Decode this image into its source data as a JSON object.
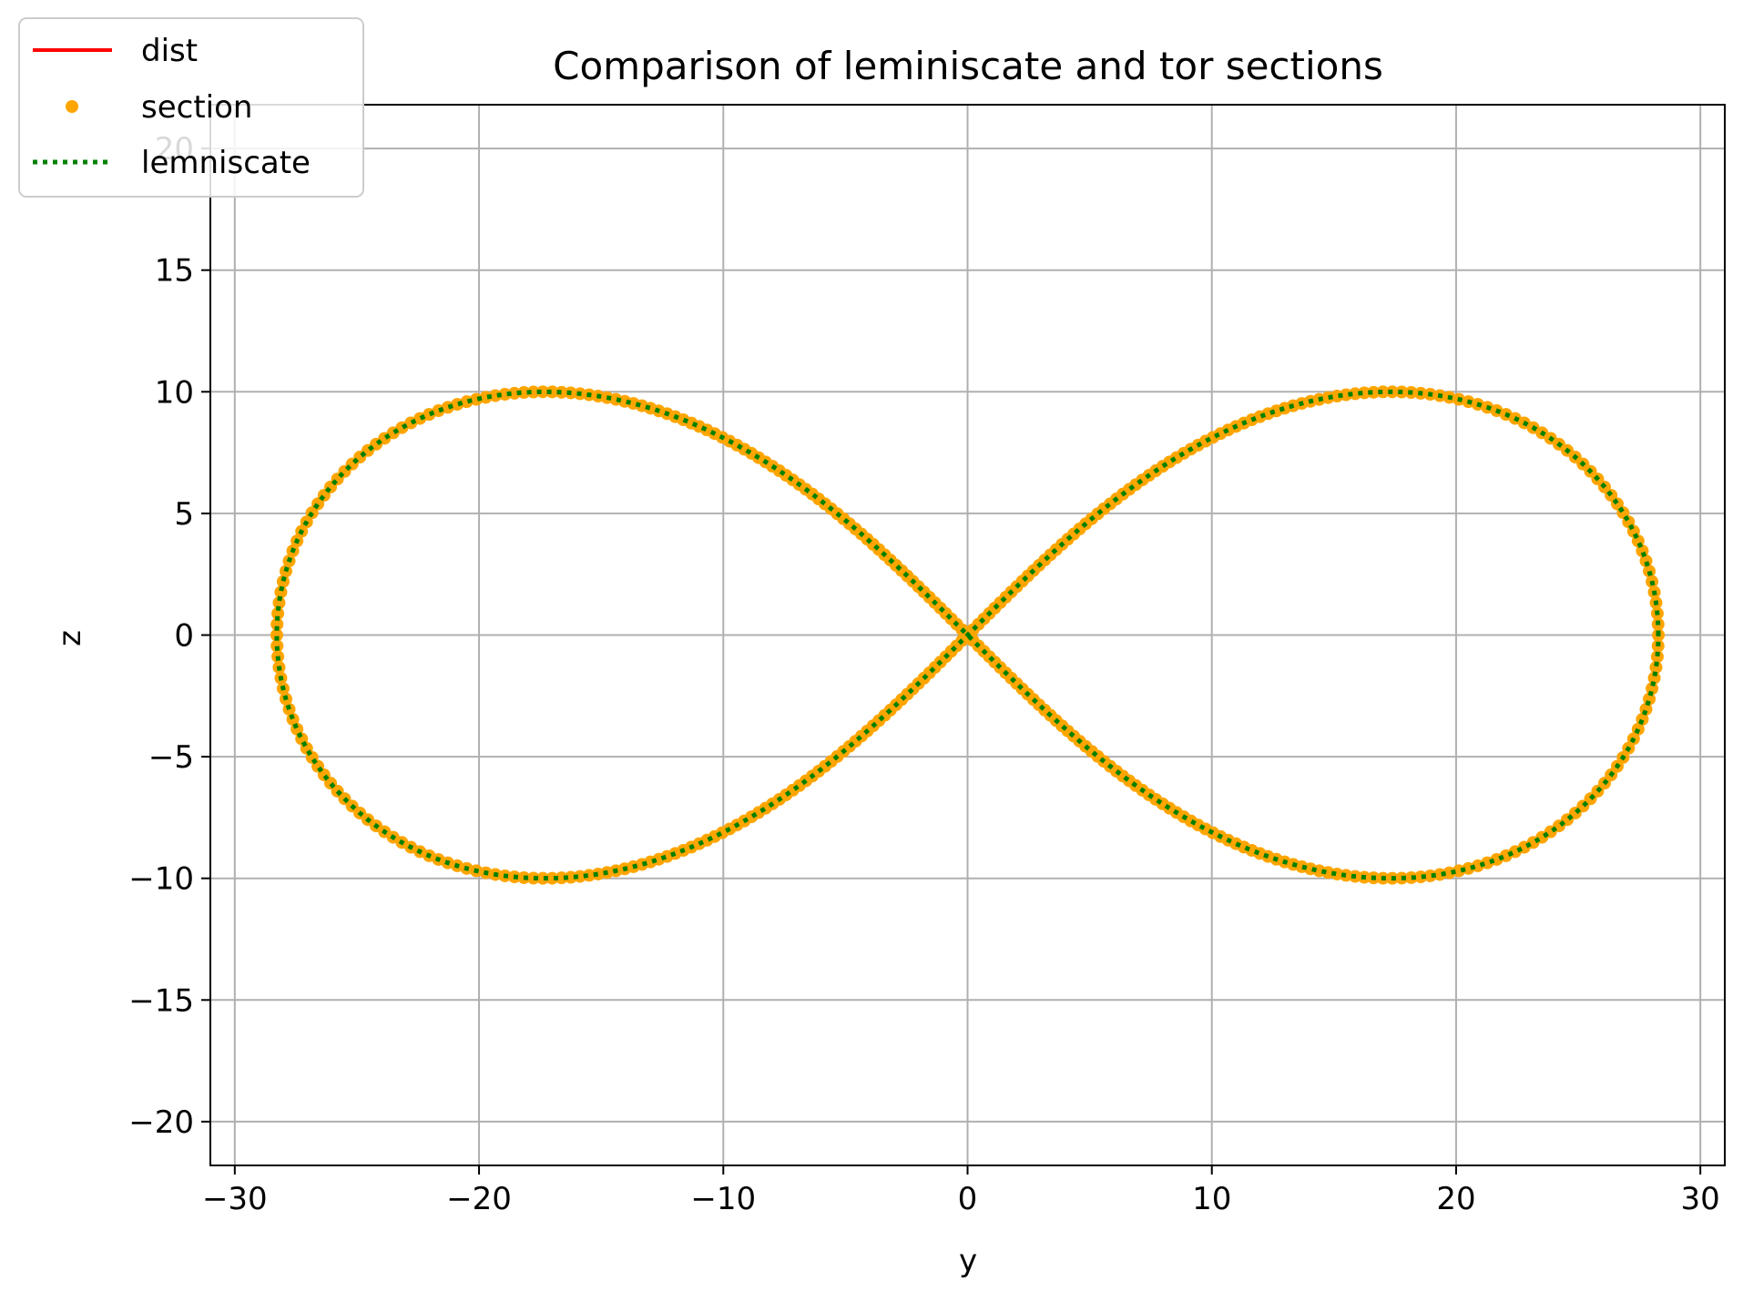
{
  "chart_data": {
    "type": "line",
    "title": "Comparison of leminiscate and tor sections",
    "xlabel": "y",
    "ylabel": "z",
    "xlim": [
      -31,
      31
    ],
    "ylim": [
      -21.8,
      21.8
    ],
    "xticks": [
      -30,
      -20,
      -10,
      0,
      10,
      20,
      30
    ],
    "yticks": [
      -20,
      -15,
      -10,
      -5,
      0,
      5,
      10,
      15,
      20
    ],
    "xtick_labels": [
      "−30",
      "−20",
      "−10",
      "0",
      "10",
      "20",
      "30"
    ],
    "ytick_labels": [
      "−20",
      "−15",
      "−10",
      "−5",
      "0",
      "5",
      "10",
      "15",
      "20"
    ],
    "grid": true,
    "legend_position": "top-left",
    "curve": {
      "kind": "lemniscate of Bernoulli",
      "a": 28.28,
      "parametric": "y = a*cos(t)/(1+sin(t)^2), z = a*sin(t)*cos(t)/(1+sin(t)^2)",
      "y_range": [
        -28.28,
        28.28
      ],
      "z_range": [
        -10,
        10
      ]
    },
    "series": [
      {
        "name": "dist",
        "color": "#ff0000",
        "style": "solid",
        "visible_points": 0
      },
      {
        "name": "section",
        "color": "#ffa500",
        "style": "dots",
        "marker_count": 400
      },
      {
        "name": "lemniscate",
        "color": "#008000",
        "style": "dotted"
      }
    ]
  }
}
